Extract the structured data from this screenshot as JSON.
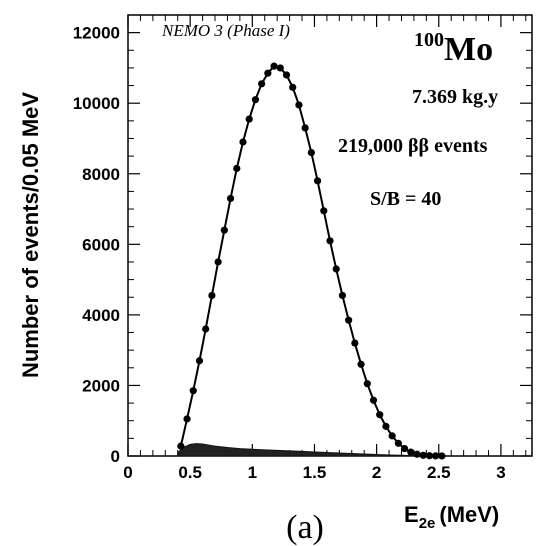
{
  "chart_data": {
    "type": "scatter",
    "xlabel": "E",
    "xlabel_subscript": "2e",
    "xlabel_unit": "(MeV)",
    "ylabel": "Number of events/0.05 MeV",
    "xlim": [
      0,
      3.25
    ],
    "ylim": [
      0,
      12500
    ],
    "x_ticks": [
      "0",
      "0.5",
      "1",
      "1.5",
      "2",
      "2.5",
      "3"
    ],
    "y_ticks": [
      "0",
      "2000",
      "4000",
      "6000",
      "8000",
      "10000",
      "12000"
    ],
    "panel_label": "(a)",
    "annotations": {
      "experiment": "NEMO 3 (Phase I)",
      "isotope_mass": "100",
      "isotope_symbol": "Mo",
      "exposure": "7.369 kg.y",
      "events": "219,000 ββ events",
      "signal_to_background": "S/B = 40"
    },
    "series": [
      {
        "style": "points",
        "x": [
          0.425,
          0.475,
          0.525,
          0.575,
          0.625,
          0.675,
          0.725,
          0.775,
          0.825,
          0.875,
          0.925,
          0.975,
          1.025,
          1.075,
          1.125,
          1.175,
          1.225,
          1.275,
          1.325,
          1.375,
          1.425,
          1.475,
          1.525,
          1.575,
          1.625,
          1.675,
          1.725,
          1.775,
          1.825,
          1.875,
          1.925,
          1.975,
          2.025,
          2.075,
          2.125,
          2.175,
          2.225,
          2.275,
          2.325,
          2.375,
          2.425,
          2.475,
          2.525
        ],
        "y": [
          280,
          1050,
          1850,
          2700,
          3600,
          4550,
          5500,
          6400,
          7300,
          8150,
          8900,
          9550,
          10100,
          10550,
          10850,
          11050,
          11000,
          10800,
          10450,
          9950,
          9300,
          8600,
          7800,
          6950,
          6100,
          5300,
          4550,
          3850,
          3200,
          2600,
          2050,
          1580,
          1170,
          840,
          570,
          360,
          210,
          110,
          50,
          20,
          8,
          3,
          1
        ]
      },
      {
        "style": "line",
        "x": [
          0.425,
          0.475,
          0.525,
          0.575,
          0.625,
          0.675,
          0.725,
          0.775,
          0.825,
          0.875,
          0.925,
          0.975,
          1.025,
          1.075,
          1.125,
          1.175,
          1.225,
          1.275,
          1.325,
          1.375,
          1.425,
          1.475,
          1.525,
          1.575,
          1.625,
          1.675,
          1.725,
          1.775,
          1.825,
          1.875,
          1.925,
          1.975,
          2.025,
          2.075,
          2.125,
          2.175,
          2.225,
          2.275,
          2.325,
          2.375,
          2.425,
          2.475,
          2.525
        ],
        "y": [
          280,
          1050,
          1850,
          2700,
          3600,
          4550,
          5500,
          6400,
          7300,
          8150,
          8900,
          9550,
          10100,
          10550,
          10850,
          11050,
          11000,
          10800,
          10450,
          9950,
          9300,
          8600,
          7800,
          6950,
          6100,
          5300,
          4550,
          3850,
          3200,
          2600,
          2050,
          1580,
          1170,
          840,
          570,
          360,
          210,
          110,
          50,
          20,
          8,
          3,
          1
        ]
      },
      {
        "style": "area",
        "x": [
          0.4,
          0.45,
          0.5,
          0.55,
          0.6,
          0.65,
          0.7,
          0.8,
          0.9,
          1.0,
          1.1,
          1.2,
          1.3,
          1.4,
          1.5,
          1.6,
          1.7,
          1.8,
          1.9,
          2.0,
          2.1,
          2.2,
          2.3,
          2.4,
          2.5
        ],
        "y": [
          100,
          250,
          330,
          350,
          340,
          310,
          280,
          240,
          210,
          190,
          175,
          160,
          145,
          130,
          115,
          100,
          85,
          70,
          55,
          42,
          30,
          20,
          12,
          6,
          2
        ]
      }
    ]
  }
}
